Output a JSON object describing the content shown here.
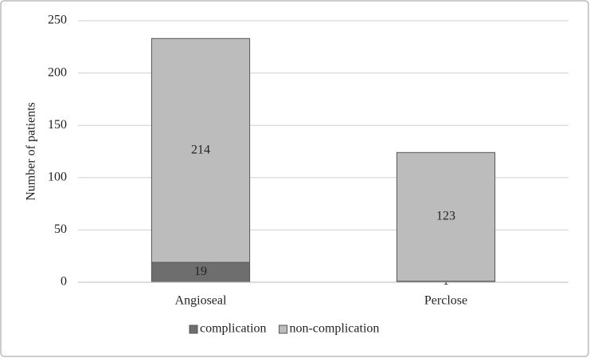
{
  "chart_data": {
    "type": "stacked_bar",
    "ylabel": "Number of patients",
    "categories": [
      "Angioseal",
      "Perclose"
    ],
    "series": [
      {
        "name": "complication",
        "color": "#6e6e6e",
        "values": [
          19,
          1
        ]
      },
      {
        "name": "non-complication",
        "color": "#bcbcbc",
        "values": [
          214,
          123
        ]
      }
    ],
    "ylim": [
      0,
      250
    ],
    "yticks": [
      0,
      50,
      100,
      150,
      200,
      250
    ],
    "grid": true,
    "legend": "bottom"
  }
}
